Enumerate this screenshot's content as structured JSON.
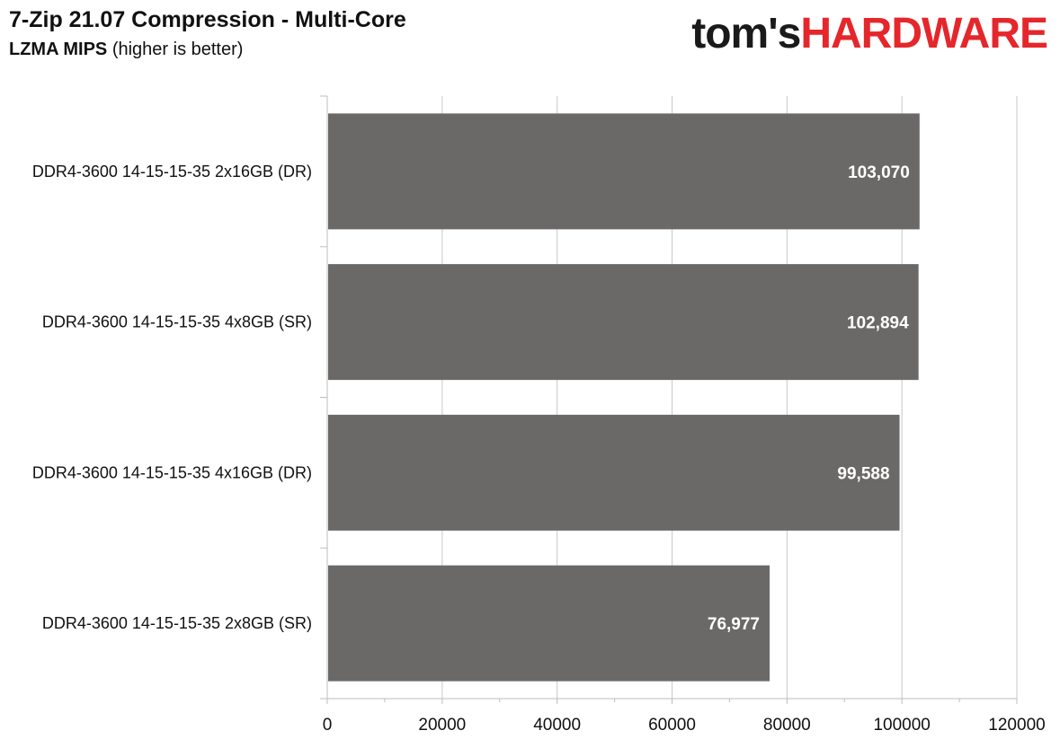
{
  "header": {
    "title": "7-Zip 21.07 Compression - Multi-Core",
    "subtitle_bold": "LZMA MIPS",
    "subtitle_rest": "(higher is better)"
  },
  "logo": {
    "part1": "tom's",
    "part2": "HARDWARE",
    "color_part1": "#1a1a1a",
    "color_part2": "#e5262b"
  },
  "chart_data": {
    "type": "bar",
    "orientation": "horizontal",
    "title": "7-Zip 21.07 Compression - Multi-Core",
    "subtitle": "LZMA MIPS (higher is better)",
    "xlabel": "",
    "ylabel": "",
    "categories": [
      "DDR4-3600 14-15-15-35 2x16GB (DR)",
      "DDR4-3600 14-15-15-35 4x8GB (SR)",
      "DDR4-3600 14-15-15-35 4x16GB (DR)",
      "DDR4-3600 14-15-15-35 2x8GB (SR)"
    ],
    "values": [
      103070,
      102894,
      99588,
      76977
    ],
    "data_labels": [
      "103,070",
      "102,894",
      "99,588",
      "76,977"
    ],
    "xlim": [
      0,
      120000
    ],
    "xticks": [
      0,
      20000,
      40000,
      60000,
      80000,
      100000,
      120000
    ],
    "grid": true,
    "bar_color": "#6b6868",
    "legend": "none"
  }
}
